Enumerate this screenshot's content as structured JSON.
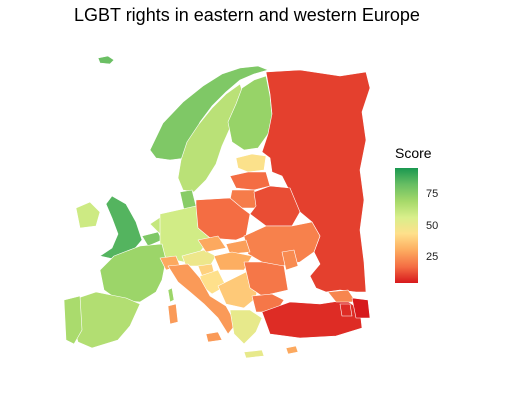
{
  "chart_data": {
    "type": "choropleth map",
    "title": "LGBT rights in eastern and western Europe",
    "legend": {
      "title": "Score",
      "min": 5,
      "max": 96,
      "ticks": [
        25,
        50,
        75
      ],
      "colors": [
        "#d7191c",
        "#f46d43",
        "#fdae61",
        "#fee08b",
        "#d9ef8b",
        "#a6d96a",
        "#66bd63",
        "#1a9850"
      ],
      "placement": "right"
    },
    "regions": [
      {
        "id": "norway",
        "score": 78
      },
      {
        "id": "sweden",
        "score": 65
      },
      {
        "id": "finland",
        "score": 73
      },
      {
        "id": "iceland",
        "score": 82
      },
      {
        "id": "russia",
        "score": 11
      },
      {
        "id": "estonia",
        "score": 45
      },
      {
        "id": "latvia",
        "score": 18
      },
      {
        "id": "lithuania",
        "score": 21
      },
      {
        "id": "belarus",
        "score": 13
      },
      {
        "id": "poland",
        "score": 18
      },
      {
        "id": "ukraine",
        "score": 22
      },
      {
        "id": "uk",
        "score": 86
      },
      {
        "id": "ireland",
        "score": 60
      },
      {
        "id": "denmark",
        "score": 76
      },
      {
        "id": "netherlands",
        "score": 62
      },
      {
        "id": "belgium",
        "score": 78
      },
      {
        "id": "germany",
        "score": 59
      },
      {
        "id": "france",
        "score": 72
      },
      {
        "id": "spain",
        "score": 67
      },
      {
        "id": "portugal",
        "score": 69
      },
      {
        "id": "switzerland",
        "score": 30
      },
      {
        "id": "austria",
        "score": 50
      },
      {
        "id": "czechia",
        "score": 30
      },
      {
        "id": "slovakia",
        "score": 28
      },
      {
        "id": "hungary",
        "score": 31
      },
      {
        "id": "slovenia",
        "score": 40
      },
      {
        "id": "croatia",
        "score": 44
      },
      {
        "id": "italy",
        "score": 27
      },
      {
        "id": "balkans",
        "score": 38
      },
      {
        "id": "romania",
        "score": 20
      },
      {
        "id": "moldova",
        "score": 24
      },
      {
        "id": "bulgaria",
        "score": 20
      },
      {
        "id": "greece",
        "score": 52
      },
      {
        "id": "turkey",
        "score": 8
      },
      {
        "id": "georgia",
        "score": 23
      },
      {
        "id": "armenia",
        "score": 8
      },
      {
        "id": "azerbaijan",
        "score": 3
      },
      {
        "id": "cyprus",
        "score": 30
      },
      {
        "id": "corsica",
        "score": 72
      },
      {
        "id": "sardinia",
        "score": 27
      },
      {
        "id": "sicily",
        "score": 27
      },
      {
        "id": "crete",
        "score": 52
      }
    ]
  }
}
